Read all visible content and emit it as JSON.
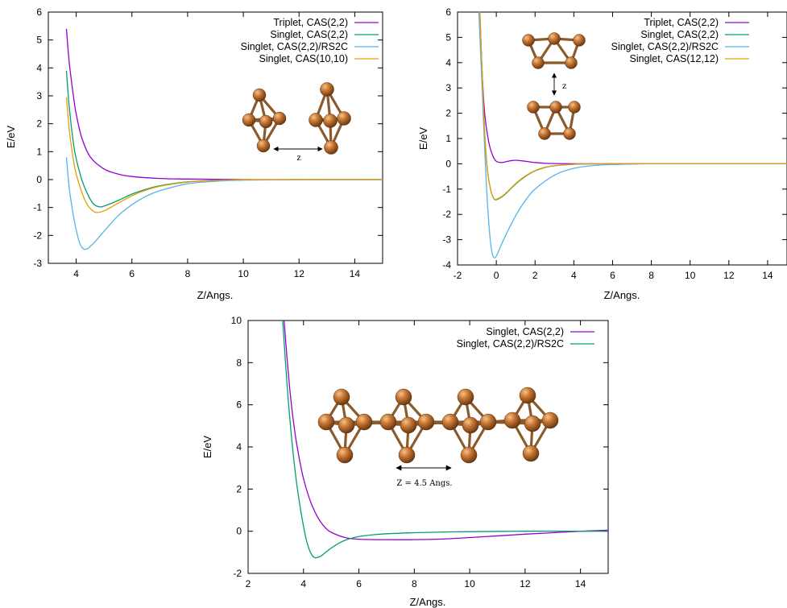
{
  "colors": {
    "purple": "#9400d3",
    "green": "#009e73",
    "skyblue": "#56b4e9",
    "orange": "#e69f00",
    "atom": "#c87533",
    "bond": "#8b5a2b"
  },
  "chart_data": [
    {
      "id": "top-left",
      "type": "line",
      "xlabel": "Z/Angs.",
      "ylabel": "E/eV",
      "xlim": [
        3.0,
        15.0
      ],
      "ylim": [
        -3,
        6
      ],
      "xticks": [
        4,
        6,
        8,
        10,
        12,
        14
      ],
      "yticks": [
        -3,
        -2,
        -1,
        0,
        1,
        2,
        3,
        4,
        5,
        6
      ],
      "grid": false,
      "legend_position": "top-right",
      "inset_label": "z",
      "series": [
        {
          "name": "Triplet, CAS(2,2)",
          "color": "purple",
          "x": [
            3.65,
            3.75,
            3.9,
            4.0,
            4.2,
            4.5,
            5.0,
            5.5,
            6.0,
            7.0,
            8.0,
            10.0,
            12.0,
            15.0
          ],
          "y": [
            5.4,
            4.2,
            3.0,
            2.35,
            1.5,
            0.82,
            0.38,
            0.2,
            0.11,
            0.04,
            0.02,
            0.0,
            0.0,
            0.0
          ]
        },
        {
          "name": "Singlet, CAS(2,2)",
          "color": "green",
          "x": [
            3.65,
            3.75,
            3.9,
            4.0,
            4.2,
            4.4,
            4.6,
            4.8,
            5.0,
            5.5,
            6.0,
            6.5,
            7.0,
            8.0,
            9.0,
            10.0,
            12.0,
            15.0
          ],
          "y": [
            3.9,
            2.6,
            1.3,
            0.75,
            0.0,
            -0.5,
            -0.85,
            -0.97,
            -0.95,
            -0.75,
            -0.52,
            -0.35,
            -0.22,
            -0.08,
            -0.03,
            -0.01,
            0.0,
            0.0
          ]
        },
        {
          "name": "Singlet, CAS(2,2)/RS2C",
          "color": "skyblue",
          "x": [
            3.65,
            3.75,
            3.9,
            4.0,
            4.1,
            4.2,
            4.3,
            4.4,
            4.5,
            4.7,
            5.0,
            5.5,
            6.0,
            6.5,
            7.0,
            8.0,
            9.0,
            10.0,
            12.0,
            15.0
          ],
          "y": [
            0.8,
            -0.3,
            -1.3,
            -1.8,
            -2.2,
            -2.42,
            -2.5,
            -2.48,
            -2.4,
            -2.2,
            -1.85,
            -1.3,
            -0.9,
            -0.6,
            -0.4,
            -0.15,
            -0.06,
            -0.02,
            0.0,
            0.0
          ]
        },
        {
          "name": "Singlet, CAS(10,10)",
          "color": "orange",
          "x": [
            3.65,
            3.75,
            3.9,
            4.0,
            4.2,
            4.4,
            4.6,
            4.75,
            5.0,
            5.5,
            6.0,
            6.5,
            7.0,
            8.0,
            9.0,
            10.0,
            12.0,
            15.0
          ],
          "y": [
            2.95,
            1.8,
            0.7,
            0.2,
            -0.45,
            -0.9,
            -1.12,
            -1.18,
            -1.12,
            -0.85,
            -0.58,
            -0.38,
            -0.24,
            -0.09,
            -0.03,
            -0.01,
            0.0,
            0.0
          ]
        }
      ]
    },
    {
      "id": "top-right",
      "type": "line",
      "xlabel": "Z/Angs.",
      "ylabel": "E/eV",
      "xlim": [
        -2,
        15
      ],
      "ylim": [
        -4,
        6
      ],
      "xticks": [
        -2,
        0,
        2,
        4,
        6,
        8,
        10,
        12,
        14
      ],
      "yticks": [
        -4,
        -3,
        -2,
        -1,
        0,
        1,
        2,
        3,
        4,
        5,
        6
      ],
      "grid": false,
      "legend_position": "top-right",
      "inset_label": "z",
      "series": [
        {
          "name": "Triplet, CAS(2,2)",
          "color": "purple",
          "x": [
            -0.85,
            -0.75,
            -0.6,
            -0.4,
            -0.2,
            0.0,
            0.3,
            0.6,
            1.0,
            1.5,
            2.0,
            2.5,
            3.0,
            4.0,
            6.0,
            10.0,
            15.0
          ],
          "y": [
            6.0,
            3.9,
            2.0,
            0.9,
            0.35,
            0.1,
            0.05,
            0.1,
            0.14,
            0.1,
            0.05,
            0.02,
            0.01,
            0.0,
            0.0,
            0.0,
            0.0
          ]
        },
        {
          "name": "Singlet, CAS(2,2)",
          "color": "green",
          "x": [
            -0.85,
            -0.75,
            -0.65,
            -0.55,
            -0.45,
            -0.3,
            -0.15,
            0.0,
            0.3,
            0.6,
            1.0,
            1.5,
            2.0,
            2.5,
            3.0,
            4.0,
            6.0,
            10.0,
            15.0
          ],
          "y": [
            6.0,
            4.0,
            2.0,
            0.6,
            -0.3,
            -1.0,
            -1.35,
            -1.42,
            -1.3,
            -1.1,
            -0.8,
            -0.5,
            -0.28,
            -0.15,
            -0.08,
            -0.02,
            0.0,
            0.0,
            0.0
          ]
        },
        {
          "name": "Singlet, CAS(2,2)/RS2C",
          "color": "skyblue",
          "x": [
            -0.9,
            -0.8,
            -0.7,
            -0.6,
            -0.5,
            -0.4,
            -0.3,
            -0.2,
            -0.1,
            0.0,
            0.2,
            0.5,
            1.0,
            1.5,
            2.0,
            3.0,
            4.0,
            5.0,
            6.0,
            8.0,
            10.0,
            15.0
          ],
          "y": [
            6.0,
            4.2,
            2.4,
            0.6,
            -1.0,
            -2.2,
            -3.1,
            -3.58,
            -3.72,
            -3.65,
            -3.3,
            -2.8,
            -2.05,
            -1.45,
            -1.0,
            -0.45,
            -0.18,
            -0.07,
            -0.03,
            0.0,
            0.0,
            0.0
          ]
        },
        {
          "name": "Singlet, CAS(12,12)",
          "color": "orange",
          "x": [
            -0.85,
            -0.75,
            -0.65,
            -0.55,
            -0.45,
            -0.3,
            -0.15,
            0.0,
            0.3,
            0.6,
            1.0,
            1.5,
            2.0,
            2.5,
            3.0,
            4.0,
            6.0,
            10.0,
            15.0
          ],
          "y": [
            6.0,
            4.0,
            2.0,
            0.6,
            -0.3,
            -1.0,
            -1.35,
            -1.4,
            -1.28,
            -1.08,
            -0.78,
            -0.48,
            -0.27,
            -0.14,
            -0.07,
            -0.02,
            0.0,
            0.0,
            0.0
          ]
        }
      ]
    },
    {
      "id": "bottom",
      "type": "line",
      "xlabel": "Z/Angs.",
      "ylabel": "E/eV",
      "xlim": [
        2,
        15
      ],
      "ylim": [
        -2,
        10
      ],
      "xticks": [
        2,
        4,
        6,
        8,
        10,
        12,
        14
      ],
      "yticks": [
        -2,
        0,
        2,
        4,
        6,
        8,
        10
      ],
      "grid": false,
      "legend_position": "top-right",
      "inset_label": "Z = 4.5 Angs.",
      "series": [
        {
          "name": "Singlet, CAS(2,2)",
          "color": "purple",
          "x": [
            3.3,
            3.4,
            3.5,
            3.6,
            3.7,
            3.8,
            3.9,
            4.0,
            4.2,
            4.4,
            4.6,
            4.8,
            5.0,
            5.5,
            6.0,
            7.0,
            8.0,
            9.0,
            10.0,
            11.0,
            12.0,
            13.0,
            14.0,
            15.0
          ],
          "y": [
            10.0,
            8.3,
            6.8,
            5.6,
            4.6,
            3.8,
            3.1,
            2.5,
            1.6,
            0.95,
            0.48,
            0.15,
            -0.05,
            -0.3,
            -0.38,
            -0.4,
            -0.4,
            -0.37,
            -0.3,
            -0.22,
            -0.14,
            -0.07,
            0.0,
            0.05
          ]
        },
        {
          "name": "Singlet, CAS(2,2)/RS2C",
          "color": "green",
          "x": [
            3.25,
            3.35,
            3.45,
            3.55,
            3.65,
            3.75,
            3.85,
            3.95,
            4.1,
            4.25,
            4.4,
            4.6,
            4.8,
            5.0,
            5.3,
            5.6,
            6.0,
            6.5,
            7.0,
            8.0,
            9.0,
            10.0,
            12.0,
            14.0,
            15.0
          ],
          "y": [
            10.0,
            8.0,
            6.2,
            4.7,
            3.4,
            2.3,
            1.4,
            0.6,
            -0.4,
            -1.0,
            -1.25,
            -1.2,
            -1.0,
            -0.8,
            -0.55,
            -0.38,
            -0.25,
            -0.17,
            -0.12,
            -0.07,
            -0.04,
            -0.02,
            0.0,
            0.0,
            0.0
          ]
        }
      ]
    }
  ]
}
